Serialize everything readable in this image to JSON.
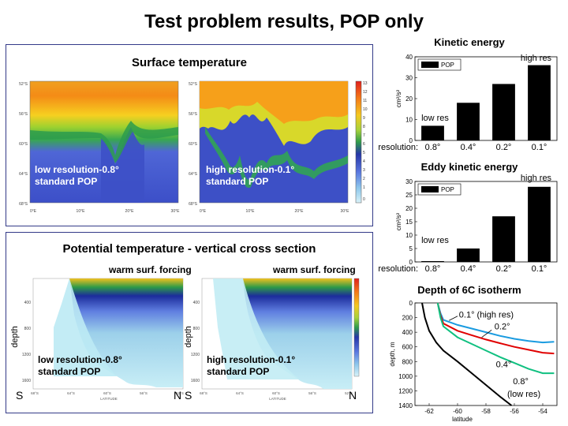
{
  "title": "Test problem results, POP only",
  "surface_panel": {
    "title": "Surface temperature",
    "map_low": {
      "label1": "low resolution-0.8°",
      "label2": "standard POP"
    },
    "map_high": {
      "label1": "high resolution-0.1°",
      "label2": "standard POP"
    },
    "lat_ticks": [
      "52°S",
      "56°S",
      "60°S",
      "64°S",
      "68°S"
    ],
    "lon_ticks": [
      "0°E",
      "10°E",
      "20°E",
      "30°E"
    ],
    "colorbar_ticks": [
      "13",
      "12",
      "11",
      "10",
      "9",
      "8",
      "7",
      "6",
      "5",
      "4",
      "3",
      "2",
      "1",
      "0"
    ]
  },
  "section_panel": {
    "title": "Potential temperature - vertical cross section",
    "forcing_label": "warm surf. forcing",
    "ylabel": "depth",
    "xlabel": "LATITUDE",
    "south": "S",
    "north": "N",
    "depth_ticks": [
      "400",
      "800",
      "1200",
      "1600"
    ],
    "lat_ticks": [
      "68°S",
      "64°S",
      "60°S",
      "56°S",
      "52°S"
    ],
    "sec_low": {
      "label1": "low resolution-0.8°",
      "label2": "standard POP"
    },
    "sec_high": {
      "label1": "high resolution-0.1°",
      "label2": "standard POP"
    }
  },
  "chart_data": [
    {
      "type": "bar",
      "title": "Kinetic energy",
      "ylabel": "cm²/s²",
      "legend": "POP",
      "legend_position": "top-left",
      "xlabel_prefix": "resolution:",
      "categories": [
        "0.8°",
        "0.4°",
        "0.2°",
        "0.1°"
      ],
      "values": [
        7,
        18,
        27,
        36
      ],
      "ylim": [
        0,
        40
      ],
      "yticks": [
        0,
        10,
        20,
        30,
        40
      ],
      "annotations": [
        "low res",
        "high res"
      ]
    },
    {
      "type": "bar",
      "title": "Eddy kinetic energy",
      "ylabel": "cm²/s²",
      "legend": "POP",
      "legend_position": "top-left",
      "xlabel_prefix": "resolution:",
      "categories": [
        "0.8°",
        "0.4°",
        "0.2°",
        "0.1°"
      ],
      "values": [
        0.3,
        5,
        17,
        28
      ],
      "ylim": [
        0,
        30
      ],
      "yticks": [
        0,
        5,
        10,
        15,
        20,
        25,
        30
      ],
      "annotations": [
        "low res",
        "high res"
      ]
    },
    {
      "type": "line",
      "title": "Depth of 6C isotherm",
      "xlabel": "latitude",
      "ylabel": "depth, m",
      "xlim": [
        -63,
        -53
      ],
      "ylim": [
        1400,
        0
      ],
      "xticks": [
        -62,
        -60,
        -58,
        -56,
        -54
      ],
      "yticks": [
        0,
        200,
        400,
        600,
        800,
        1000,
        1200,
        1400
      ],
      "series": [
        {
          "name": "0.1° (high res)",
          "color": "#1a9be0",
          "x": [
            -61.4,
            -61.2,
            -61.0,
            -60.0,
            -59.0,
            -58.0,
            -57.0,
            -56.0,
            -55.0,
            -54.0,
            -53.2
          ],
          "y": [
            0,
            140,
            230,
            300,
            350,
            400,
            450,
            490,
            520,
            540,
            530
          ]
        },
        {
          "name": "0.2°",
          "color": "#e00000",
          "x": [
            -61.4,
            -61.2,
            -61.0,
            -60.0,
            -59.0,
            -58.0,
            -57.0,
            -56.0,
            -55.0,
            -54.0,
            -53.2
          ],
          "y": [
            0,
            170,
            280,
            380,
            440,
            500,
            550,
            600,
            640,
            680,
            690
          ]
        },
        {
          "name": "0.4°",
          "color": "#10c080",
          "x": [
            -61.4,
            -61.2,
            -61.0,
            -60.0,
            -59.0,
            -58.0,
            -57.0,
            -56.0,
            -55.0,
            -54.0,
            -53.2
          ],
          "y": [
            0,
            200,
            320,
            470,
            560,
            650,
            740,
            820,
            900,
            960,
            960
          ]
        },
        {
          "name": "0.8° (low res)",
          "color": "#000000",
          "x": [
            -62.5,
            -62.3,
            -62.0,
            -61.5,
            -61.0,
            -60.0,
            -59.0,
            -58.0,
            -57.0,
            -56.2
          ],
          "y": [
            0,
            200,
            380,
            540,
            650,
            800,
            960,
            1120,
            1280,
            1400
          ]
        }
      ],
      "annotations": [
        "0.1° (high res)",
        "0.2°",
        "0.4°",
        "0.8°",
        "(low res)"
      ]
    }
  ]
}
